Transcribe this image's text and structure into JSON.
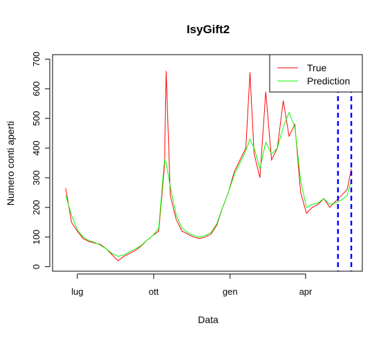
{
  "chart_data": {
    "type": "line",
    "title": "IsyGift2",
    "xlabel": "Data",
    "ylabel": "Numero conti aperti",
    "x_axis": {
      "start": "2019-06-17",
      "end": "2020-05-26",
      "tick_labels": [
        "lug",
        "ott",
        "gen",
        "apr"
      ],
      "tick_dates": [
        "2019-07-01",
        "2019-10-01",
        "2020-01-01",
        "2020-04-01"
      ]
    },
    "y_axis": {
      "ylim": [
        -15,
        715
      ],
      "ticks": [
        0,
        100,
        200,
        300,
        400,
        500,
        600,
        700
      ]
    },
    "grid": false,
    "legend": {
      "placement": "top-right",
      "entries": [
        {
          "label": "True",
          "color": "#ff0000"
        },
        {
          "label": "Prediction",
          "color": "#00ff00"
        }
      ]
    },
    "vlines": {
      "dates": [
        "2020-05-10",
        "2020-05-26"
      ],
      "color": "#0000ff",
      "style": "dashed"
    },
    "series": [
      {
        "name": "True",
        "color": "#ff0000",
        "points": [
          [
            "2019-06-17",
            265
          ],
          [
            "2019-06-24",
            150
          ],
          [
            "2019-07-01",
            120
          ],
          [
            "2019-07-08",
            95
          ],
          [
            "2019-07-15",
            85
          ],
          [
            "2019-07-22",
            80
          ],
          [
            "2019-07-29",
            75
          ],
          [
            "2019-08-05",
            60
          ],
          [
            "2019-08-12",
            40
          ],
          [
            "2019-08-19",
            20
          ],
          [
            "2019-08-26",
            35
          ],
          [
            "2019-09-02",
            45
          ],
          [
            "2019-09-09",
            55
          ],
          [
            "2019-09-16",
            70
          ],
          [
            "2019-09-23",
            90
          ],
          [
            "2019-09-30",
            105
          ],
          [
            "2019-10-07",
            120
          ],
          [
            "2019-10-14",
            340
          ],
          [
            "2019-10-16",
            660
          ],
          [
            "2019-10-21",
            240
          ],
          [
            "2019-10-28",
            160
          ],
          [
            "2019-11-04",
            120
          ],
          [
            "2019-11-11",
            110
          ],
          [
            "2019-11-18",
            100
          ],
          [
            "2019-11-25",
            95
          ],
          [
            "2019-12-02",
            100
          ],
          [
            "2019-12-09",
            110
          ],
          [
            "2019-12-16",
            140
          ],
          [
            "2019-12-23",
            200
          ],
          [
            "2019-12-30",
            250
          ],
          [
            "2020-01-06",
            320
          ],
          [
            "2020-01-13",
            360
          ],
          [
            "2020-01-20",
            400
          ],
          [
            "2020-01-25",
            655
          ],
          [
            "2020-01-30",
            380
          ],
          [
            "2020-02-06",
            300
          ],
          [
            "2020-02-13",
            590
          ],
          [
            "2020-02-20",
            360
          ],
          [
            "2020-02-27",
            400
          ],
          [
            "2020-03-05",
            560
          ],
          [
            "2020-03-12",
            440
          ],
          [
            "2020-03-19",
            480
          ],
          [
            "2020-03-26",
            250
          ],
          [
            "2020-04-02",
            180
          ],
          [
            "2020-04-09",
            200
          ],
          [
            "2020-04-16",
            210
          ],
          [
            "2020-04-23",
            230
          ],
          [
            "2020-04-30",
            200
          ],
          [
            "2020-05-07",
            220
          ],
          [
            "2020-05-14",
            240
          ],
          [
            "2020-05-21",
            260
          ],
          [
            "2020-05-26",
            330
          ]
        ]
      },
      {
        "name": "Prediction",
        "color": "#00ff00",
        "points": [
          [
            "2019-06-17",
            240
          ],
          [
            "2019-06-24",
            175
          ],
          [
            "2019-07-01",
            125
          ],
          [
            "2019-07-08",
            100
          ],
          [
            "2019-07-15",
            88
          ],
          [
            "2019-07-22",
            82
          ],
          [
            "2019-07-29",
            72
          ],
          [
            "2019-08-05",
            60
          ],
          [
            "2019-08-12",
            45
          ],
          [
            "2019-08-19",
            35
          ],
          [
            "2019-08-26",
            40
          ],
          [
            "2019-09-02",
            50
          ],
          [
            "2019-09-09",
            60
          ],
          [
            "2019-09-16",
            72
          ],
          [
            "2019-09-23",
            90
          ],
          [
            "2019-09-30",
            105
          ],
          [
            "2019-10-07",
            130
          ],
          [
            "2019-10-14",
            360
          ],
          [
            "2019-10-16",
            350
          ],
          [
            "2019-10-21",
            270
          ],
          [
            "2019-10-28",
            175
          ],
          [
            "2019-11-04",
            130
          ],
          [
            "2019-11-11",
            115
          ],
          [
            "2019-11-18",
            105
          ],
          [
            "2019-11-25",
            100
          ],
          [
            "2019-12-02",
            105
          ],
          [
            "2019-12-09",
            115
          ],
          [
            "2019-12-16",
            145
          ],
          [
            "2019-12-23",
            200
          ],
          [
            "2019-12-30",
            250
          ],
          [
            "2020-01-06",
            310
          ],
          [
            "2020-01-13",
            350
          ],
          [
            "2020-01-20",
            390
          ],
          [
            "2020-01-25",
            430
          ],
          [
            "2020-01-30",
            400
          ],
          [
            "2020-02-06",
            330
          ],
          [
            "2020-02-13",
            420
          ],
          [
            "2020-02-20",
            380
          ],
          [
            "2020-02-27",
            400
          ],
          [
            "2020-03-05",
            470
          ],
          [
            "2020-03-12",
            520
          ],
          [
            "2020-03-19",
            470
          ],
          [
            "2020-03-26",
            290
          ],
          [
            "2020-04-02",
            200
          ],
          [
            "2020-04-09",
            210
          ],
          [
            "2020-04-16",
            215
          ],
          [
            "2020-04-23",
            230
          ],
          [
            "2020-04-30",
            210
          ],
          [
            "2020-05-07",
            215
          ],
          [
            "2020-05-14",
            225
          ],
          [
            "2020-05-21",
            240
          ],
          [
            "2020-05-26",
            290
          ]
        ]
      }
    ]
  }
}
